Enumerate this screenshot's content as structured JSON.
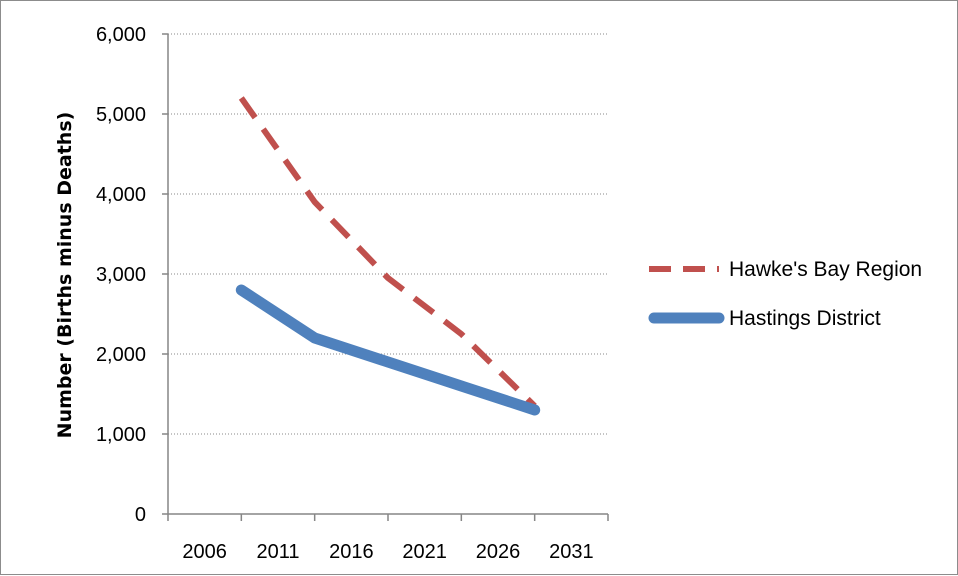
{
  "chart_data": {
    "type": "line",
    "title": "",
    "xlabel": "",
    "ylabel": "Number (Births minus Deaths)",
    "categories": [
      "2006",
      "2011",
      "2016",
      "2021",
      "2026",
      "2031"
    ],
    "x": [
      2011,
      2016,
      2021,
      2026,
      2031
    ],
    "ylim": [
      0,
      6000
    ],
    "yticks": [
      "0",
      "1,000",
      "2,000",
      "3,000",
      "4,000",
      "5,000",
      "6,000"
    ],
    "grid": true,
    "legend_position": "right",
    "series": [
      {
        "name": "Hawke's Bay Region",
        "values": [
          5200,
          3900,
          2950,
          2250,
          1350
        ],
        "color": "#c0504d",
        "style": "dashed"
      },
      {
        "name": "Hastings District",
        "values": [
          2800,
          2200,
          1900,
          1600,
          1300
        ],
        "color": "#4f81bd",
        "style": "solid"
      }
    ]
  }
}
